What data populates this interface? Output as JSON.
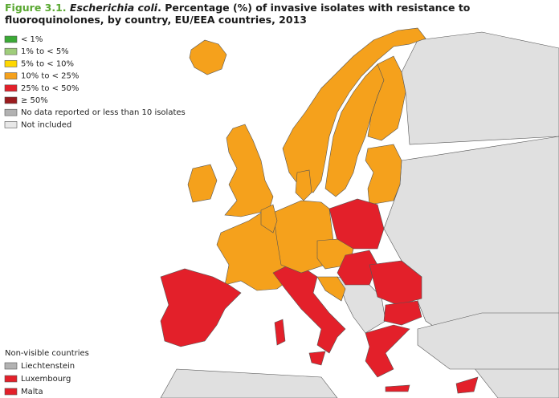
{
  "title": {
    "label": "Figure 3.1.",
    "organism": "Escherichia coli",
    "text": ". Percentage (%) of invasive isolates with resistance to fluoroquinolones, by country, EU/EEA countries, 2013"
  },
  "legend": [
    {
      "label": "< 1%",
      "color": "#3aaa35"
    },
    {
      "label": "1% to < 5%",
      "color": "#9fcd7b"
    },
    {
      "label": "5% to < 10%",
      "color": "#ffd800"
    },
    {
      "label": "10% to < 25%",
      "color": "#f5a11c"
    },
    {
      "label": "25% to < 50%",
      "color": "#e3202a"
    },
    {
      "label": "≥ 50%",
      "color": "#9b1b1e"
    },
    {
      "label": "No data reported or less than 10 isolates",
      "color": "#b2b2b2"
    },
    {
      "label": "Not included",
      "color": "#e8e8e8"
    }
  ],
  "non_visible": {
    "heading": "Non-visible countries",
    "items": [
      {
        "label": "Liechtenstein",
        "color": "#b2b2b2"
      },
      {
        "label": "Luxembourg",
        "color": "#e3202a"
      },
      {
        "label": "Malta",
        "color": "#e3202a"
      }
    ]
  }
}
